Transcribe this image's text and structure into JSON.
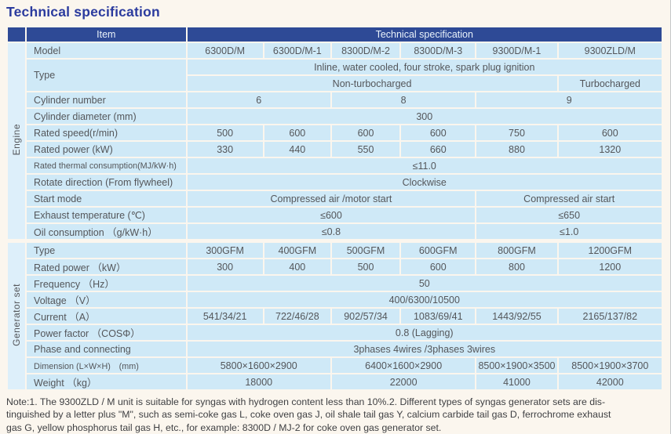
{
  "title": "Technical specification",
  "colors": {
    "title_color": "#2b3b9e",
    "header_bg": "#2e4a96",
    "header_text": "#e9f2fa",
    "cell_bg": "#cfe9f7",
    "strip_bg": "#ddeffa",
    "text_color": "#54565a",
    "note_color": "#3e3f42"
  },
  "table": {
    "header": {
      "item_label": "Item",
      "spec_label": "Technical specification"
    },
    "sections": [
      {
        "label": "Engine",
        "rows": [
          {
            "label": "Model",
            "cells": [
              {
                "t": "6300D/M"
              },
              {
                "t": "6300D/M-1"
              },
              {
                "t": "8300D/M-2"
              },
              {
                "t": "8300D/M-3"
              },
              {
                "t": "9300D/M-1"
              },
              {
                "t": "9300ZLD/M"
              }
            ]
          },
          {
            "label": "Type",
            "label_rowspan": 2,
            "cells": [
              {
                "t": "Inline, water cooled, four stroke, spark plug ignition",
                "s": 6
              }
            ]
          },
          {
            "cells": [
              {
                "t": "Non-turbocharged",
                "s": 5
              },
              {
                "t": "Turbocharged",
                "s": 1
              }
            ]
          },
          {
            "label": "Cylinder number",
            "cells": [
              {
                "t": "6",
                "s": 2
              },
              {
                "t": "8",
                "s": 2
              },
              {
                "t": "9",
                "s": 2
              }
            ]
          },
          {
            "label": "Cylinder diameter (mm)",
            "cells": [
              {
                "t": "300",
                "s": 6
              }
            ]
          },
          {
            "label": "Rated speed(r/min)",
            "cells": [
              {
                "t": "500"
              },
              {
                "t": "600"
              },
              {
                "t": "600"
              },
              {
                "t": "600"
              },
              {
                "t": "750"
              },
              {
                "t": "600"
              }
            ]
          },
          {
            "label": "Rated power (kW)",
            "cells": [
              {
                "t": "330"
              },
              {
                "t": "440"
              },
              {
                "t": "550"
              },
              {
                "t": "660"
              },
              {
                "t": "880"
              },
              {
                "t": "1320"
              }
            ]
          },
          {
            "label": "Rated thermal consumption(MJ/kW·h)",
            "small": true,
            "cells": [
              {
                "t": "≤11.0",
                "s": 6
              }
            ]
          },
          {
            "label": "Rotate direction (From flywheel)",
            "cells": [
              {
                "t": "Clockwise",
                "s": 6
              }
            ]
          },
          {
            "label": "Start mode",
            "cells": [
              {
                "t": "Compressed air /motor start",
                "s": 4
              },
              {
                "t": "Compressed air start",
                "s": 2
              }
            ]
          },
          {
            "label": "Exhaust temperature (℃)",
            "cells": [
              {
                "t": "≤600",
                "s": 4
              },
              {
                "t": "≤650",
                "s": 2
              }
            ]
          },
          {
            "label": "Oil consumption （g/kW·h）",
            "cells": [
              {
                "t": "≤0.8",
                "s": 4
              },
              {
                "t": "≤1.0",
                "s": 2
              }
            ]
          }
        ]
      },
      {
        "label": "Generator set",
        "rows": [
          {
            "label": "Type",
            "cells": [
              {
                "t": "300GFM"
              },
              {
                "t": "400GFM"
              },
              {
                "t": "500GFM"
              },
              {
                "t": "600GFM"
              },
              {
                "t": "800GFM"
              },
              {
                "t": "1200GFM"
              }
            ]
          },
          {
            "label": "Rated power （kW）",
            "cells": [
              {
                "t": "300"
              },
              {
                "t": "400"
              },
              {
                "t": "500"
              },
              {
                "t": "600"
              },
              {
                "t": "800"
              },
              {
                "t": "1200"
              }
            ]
          },
          {
            "label": "Frequency （Hz）",
            "cells": [
              {
                "t": "50",
                "s": 6
              }
            ]
          },
          {
            "label": "Voltage （V）",
            "cells": [
              {
                "t": "400/6300/10500",
                "s": 6
              }
            ]
          },
          {
            "label": "Current （A）",
            "cells": [
              {
                "t": "541/34/21"
              },
              {
                "t": "722/46/28"
              },
              {
                "t": "902/57/34"
              },
              {
                "t": "1083/69/41"
              },
              {
                "t": "1443/92/55"
              },
              {
                "t": "2165/137/82"
              }
            ]
          },
          {
            "label": "Power factor （COSΦ）",
            "cells": [
              {
                "t": "0.8 (Lagging)",
                "s": 6
              }
            ]
          },
          {
            "label": "Phase and connecting",
            "cells": [
              {
                "t": "3phases 4wires /3phases 3wires",
                "s": 6
              }
            ]
          },
          {
            "label": "Dimension (L×W×H)　(mm)",
            "small": true,
            "cells": [
              {
                "t": "5800×1600×2900",
                "s": 2
              },
              {
                "t": "6400×1600×2900",
                "s": 2
              },
              {
                "t": "8500×1900×3500"
              },
              {
                "t": "8500×1900×3700"
              }
            ]
          },
          {
            "label": "Weight （kg）",
            "cells": [
              {
                "t": "18000",
                "s": 2
              },
              {
                "t": "22000",
                "s": 2
              },
              {
                "t": "41000"
              },
              {
                "t": "42000"
              }
            ]
          }
        ]
      }
    ]
  },
  "note_lines": [
    "Note:1. The 9300ZLD / M unit is suitable for syngas with hydrogen content less than 10%.2. Different types of syngas generator sets are dis-",
    "tinguished by a letter plus \"M\", such as semi-coke gas L, coke oven gas J, oil shale tail gas Y, calcium carbide tail gas D, ferrochrome exhaust",
    "gas G, yellow phosphorus tail gas H, etc., for example: 8300D / MJ-2 for coke oven gas generator set."
  ]
}
